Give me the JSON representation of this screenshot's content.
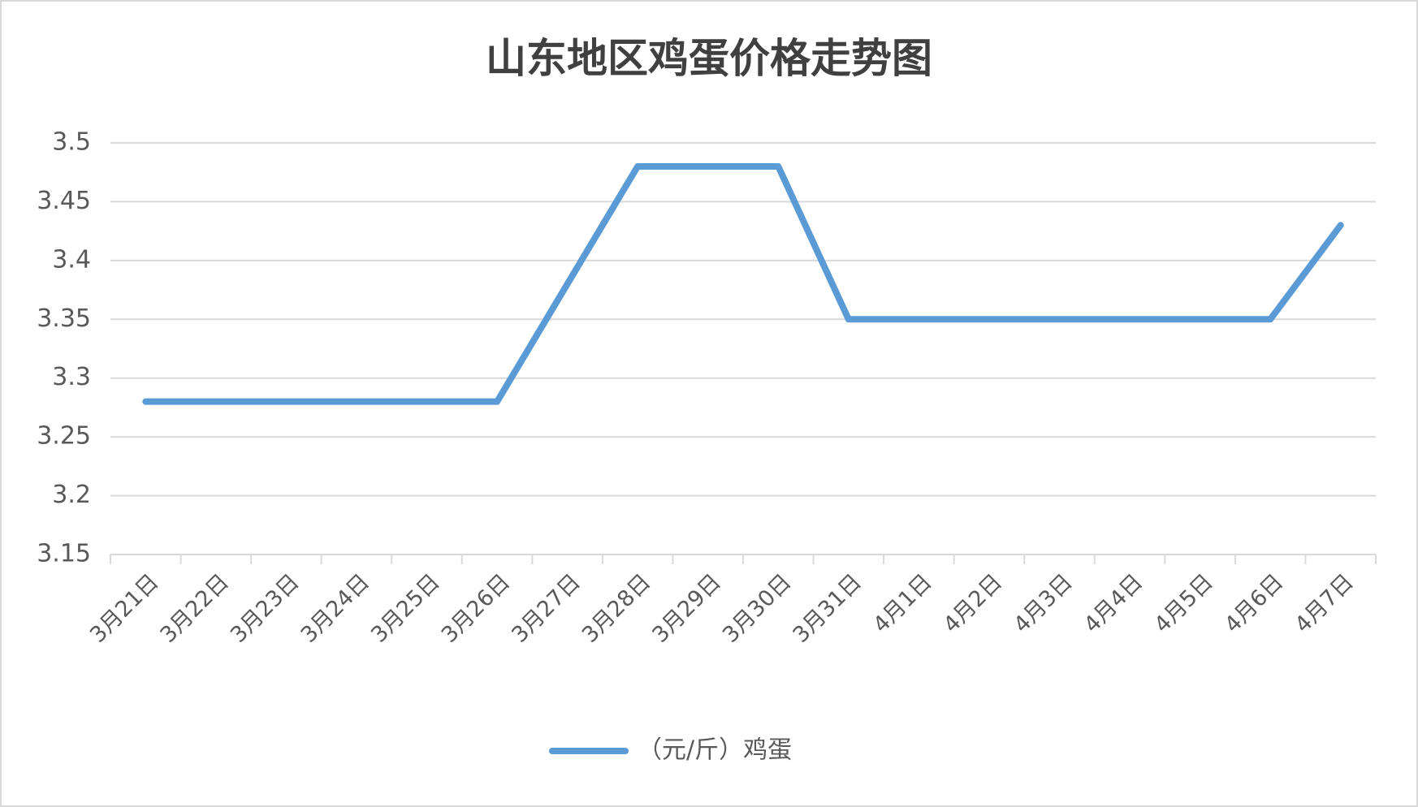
{
  "chart_data": {
    "type": "line",
    "title": "山东地区鸡蛋价格走势图",
    "categories": [
      "3月21日",
      "3月22日",
      "3月23日",
      "3月24日",
      "3月25日",
      "3月26日",
      "3月27日",
      "3月28日",
      "3月29日",
      "3月30日",
      "3月31日",
      "4月1日",
      "4月2日",
      "4月3日",
      "4月4日",
      "4月5日",
      "4月6日",
      "4月7日"
    ],
    "series": [
      {
        "name": "（元/斤）鸡蛋",
        "color": "#5b9bd5",
        "values": [
          3.28,
          3.28,
          3.28,
          3.28,
          3.28,
          3.28,
          3.38,
          3.48,
          3.48,
          3.48,
          3.35,
          3.35,
          3.35,
          3.35,
          3.35,
          3.35,
          3.35,
          3.43
        ]
      }
    ],
    "ylim": [
      3.15,
      3.5
    ],
    "yticks": [
      3.15,
      3.2,
      3.25,
      3.3,
      3.35,
      3.4,
      3.45,
      3.5
    ],
    "grid": true,
    "legend": "bottom"
  }
}
